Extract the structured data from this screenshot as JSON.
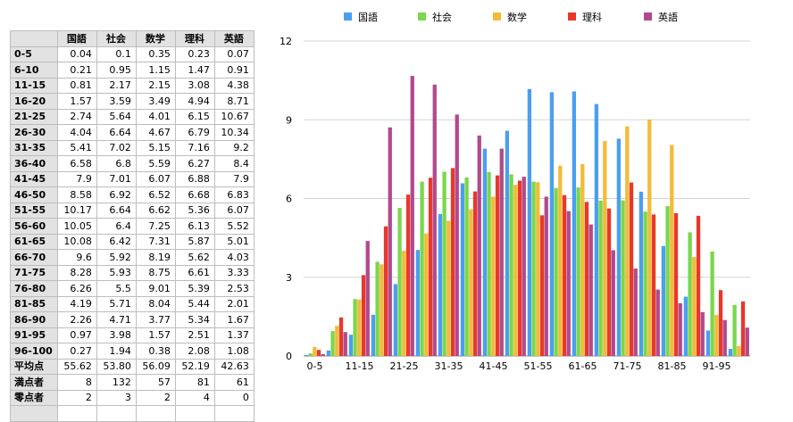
{
  "table": {
    "headers": [
      "",
      "国語",
      "社会",
      "数学",
      "理科",
      "英語"
    ],
    "rows": [
      {
        "label": "0-5",
        "values": [
          "0.04",
          "0.1",
          "0.35",
          "0.23",
          "0.07"
        ]
      },
      {
        "label": "6-10",
        "values": [
          "0.21",
          "0.95",
          "1.15",
          "1.47",
          "0.91"
        ]
      },
      {
        "label": "11-15",
        "values": [
          "0.81",
          "2.17",
          "2.15",
          "3.08",
          "4.38"
        ]
      },
      {
        "label": "16-20",
        "values": [
          "1.57",
          "3.59",
          "3.49",
          "4.94",
          "8.71"
        ]
      },
      {
        "label": "21-25",
        "values": [
          "2.74",
          "5.64",
          "4.01",
          "6.15",
          "10.67"
        ]
      },
      {
        "label": "26-30",
        "values": [
          "4.04",
          "6.64",
          "4.67",
          "6.79",
          "10.34"
        ]
      },
      {
        "label": "31-35",
        "values": [
          "5.41",
          "7.02",
          "5.15",
          "7.16",
          "9.2"
        ]
      },
      {
        "label": "36-40",
        "values": [
          "6.58",
          "6.8",
          "5.59",
          "6.27",
          "8.4"
        ]
      },
      {
        "label": "41-45",
        "values": [
          "7.9",
          "7.01",
          "6.07",
          "6.88",
          "7.9"
        ]
      },
      {
        "label": "46-50",
        "values": [
          "8.58",
          "6.92",
          "6.52",
          "6.68",
          "6.83"
        ]
      },
      {
        "label": "51-55",
        "values": [
          "10.17",
          "6.64",
          "6.62",
          "5.36",
          "6.07"
        ]
      },
      {
        "label": "56-60",
        "values": [
          "10.05",
          "6.4",
          "7.25",
          "6.13",
          "5.52"
        ]
      },
      {
        "label": "61-65",
        "values": [
          "10.08",
          "6.42",
          "7.31",
          "5.87",
          "5.01"
        ]
      },
      {
        "label": "66-70",
        "values": [
          "9.6",
          "5.92",
          "8.19",
          "5.62",
          "4.03"
        ]
      },
      {
        "label": "71-75",
        "values": [
          "8.28",
          "5.93",
          "8.75",
          "6.61",
          "3.33"
        ]
      },
      {
        "label": "76-80",
        "values": [
          "6.26",
          "5.5",
          "9.01",
          "5.39",
          "2.53"
        ]
      },
      {
        "label": "81-85",
        "values": [
          "4.19",
          "5.71",
          "8.04",
          "5.44",
          "2.01"
        ]
      },
      {
        "label": "86-90",
        "values": [
          "2.26",
          "4.71",
          "3.77",
          "5.34",
          "1.67"
        ]
      },
      {
        "label": "91-95",
        "values": [
          "0.97",
          "3.98",
          "1.57",
          "2.51",
          "1.37"
        ]
      },
      {
        "label": "96-100",
        "values": [
          "0.27",
          "1.94",
          "0.38",
          "2.08",
          "1.08"
        ]
      },
      {
        "label": "平均点",
        "values": [
          "55.62",
          "53.80",
          "56.09",
          "52.19",
          "42.63"
        ]
      },
      {
        "label": "満点者",
        "values": [
          "8",
          "132",
          "57",
          "81",
          "61"
        ]
      },
      {
        "label": "零点者",
        "values": [
          "2",
          "3",
          "2",
          "4",
          "0"
        ]
      },
      {
        "label": "",
        "values": [
          "",
          "",
          "",
          "",
          ""
        ]
      }
    ]
  },
  "chart_data": {
    "type": "bar",
    "categories": [
      "0-5",
      "6-10",
      "11-15",
      "16-20",
      "21-25",
      "26-30",
      "31-35",
      "36-40",
      "41-45",
      "46-50",
      "51-55",
      "56-60",
      "61-65",
      "66-70",
      "71-75",
      "76-80",
      "81-85",
      "86-90",
      "91-95",
      "96-100"
    ],
    "x_tick_labels": [
      "0-5",
      "11-15",
      "21-25",
      "31-35",
      "41-45",
      "51-55",
      "61-65",
      "71-75",
      "81-85",
      "91-95"
    ],
    "ylim": [
      0,
      12
    ],
    "y_ticks": [
      0,
      3,
      6,
      9,
      12
    ],
    "grid": true,
    "legend_position": "top",
    "series": [
      {
        "name": "国語",
        "color": "#4a9ff0",
        "values": [
          0.04,
          0.21,
          0.81,
          1.57,
          2.74,
          4.04,
          5.41,
          6.58,
          7.9,
          8.58,
          10.17,
          10.05,
          10.08,
          9.6,
          8.28,
          6.26,
          4.19,
          2.26,
          0.97,
          0.27
        ]
      },
      {
        "name": "社会",
        "color": "#7bd64c",
        "values": [
          0.1,
          0.95,
          2.17,
          3.59,
          5.64,
          6.64,
          7.02,
          6.8,
          7.01,
          6.92,
          6.64,
          6.4,
          6.42,
          5.92,
          5.93,
          5.5,
          5.71,
          4.71,
          3.98,
          1.94
        ]
      },
      {
        "name": "数学",
        "color": "#f2bb3a",
        "values": [
          0.35,
          1.15,
          2.15,
          3.49,
          4.01,
          4.67,
          5.15,
          5.59,
          6.07,
          6.52,
          6.62,
          7.25,
          7.31,
          8.19,
          8.75,
          9.01,
          8.04,
          3.77,
          1.57,
          0.38
        ]
      },
      {
        "name": "理科",
        "color": "#e8382c",
        "values": [
          0.23,
          1.47,
          3.08,
          4.94,
          6.15,
          6.79,
          7.16,
          6.27,
          6.88,
          6.68,
          5.36,
          6.13,
          5.87,
          5.62,
          6.61,
          5.39,
          5.44,
          5.34,
          2.51,
          2.08
        ]
      },
      {
        "name": "英語",
        "color": "#b04a8e",
        "values": [
          0.07,
          0.91,
          4.38,
          8.71,
          10.67,
          10.34,
          9.2,
          8.4,
          7.9,
          6.83,
          6.07,
          5.52,
          5.01,
          4.03,
          3.33,
          2.53,
          2.01,
          1.67,
          1.37,
          1.08
        ]
      }
    ]
  }
}
